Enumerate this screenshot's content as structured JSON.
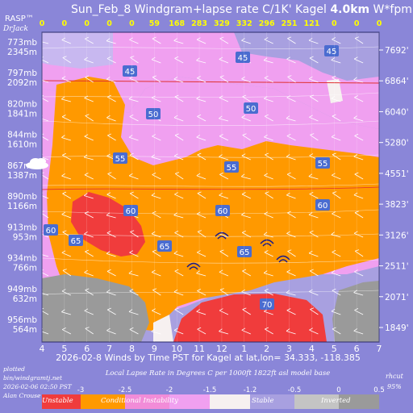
{
  "chart_data": {
    "type": "heatmap",
    "title": "Sun_Feb_8 Windgram+lapse rate C/1K'  Kagel ",
    "title_bold": "4.0km",
    "title_suffix": "  W*fpm up",
    "logo_top": "RASP™",
    "logo_bottom": "DrJack",
    "wstar_values": [
      "0",
      "0",
      "0",
      "0",
      "0",
      "59",
      "168",
      "283",
      "329",
      "332",
      "296",
      "251",
      "121",
      "0",
      "0",
      "0"
    ],
    "x_ticks": [
      "4",
      "5",
      "6",
      "7",
      "8",
      "9",
      "10",
      "11",
      "12",
      "1",
      "2",
      "3",
      "4",
      "5",
      "6",
      "7"
    ],
    "x_axis_label": "2026-02-8 Winds by Time PST for Kagel at lat,lon= 34.333, -118.385",
    "left_axis": [
      {
        "mb": "773mb",
        "m": "2345m"
      },
      {
        "mb": "797mb",
        "m": "2092m"
      },
      {
        "mb": "820mb",
        "m": "1841m"
      },
      {
        "mb": "844mb",
        "m": "1610m"
      },
      {
        "mb": "867mb",
        "m": "1387m"
      },
      {
        "mb": "890mb",
        "m": "1166m"
      },
      {
        "mb": "913mb",
        "m": "953m"
      },
      {
        "mb": "934mb",
        "m": "766m"
      },
      {
        "mb": "949mb",
        "m": "632m"
      },
      {
        "mb": "956mb",
        "m": "564m"
      }
    ],
    "right_axis": [
      "7692'",
      "6864'",
      "6040'",
      "5280'",
      "4551'",
      "3823'",
      "3126'",
      "2511'",
      "2071'",
      "1849'"
    ],
    "contour_labels": [
      "45",
      "45",
      "45",
      "50",
      "50",
      "55",
      "55",
      "55",
      "60",
      "60",
      "60",
      "60",
      "65",
      "65",
      "65",
      "70"
    ],
    "grid": true,
    "colors": {
      "unstable": "#f03c3c",
      "conditional": "#ff9900",
      "pink": "#f0a0f0",
      "stable": "#a8a0e0",
      "stable_light": "#c8b8f0",
      "inverted": "#9a9a9a",
      "background": "#8a86d8"
    }
  },
  "footer": {
    "left_lines": [
      "plotted",
      "bin/windgramtj.net",
      "2026-02-06 02:50 PST",
      "Alan Crouse"
    ],
    "legend_title": "Local Lapse Rate in Degrees C per 1000ft   1822ft asl model base",
    "right_lines": [
      "rhcut",
      "95%"
    ],
    "legend_ticks": [
      "-3",
      "-2.5",
      "-2",
      "-1.5",
      "-1.2",
      "-0.5",
      "0",
      "0.5"
    ],
    "legend_labels": [
      "Unstable",
      "Conditional Instability",
      "Stable",
      "Inverted"
    ]
  }
}
